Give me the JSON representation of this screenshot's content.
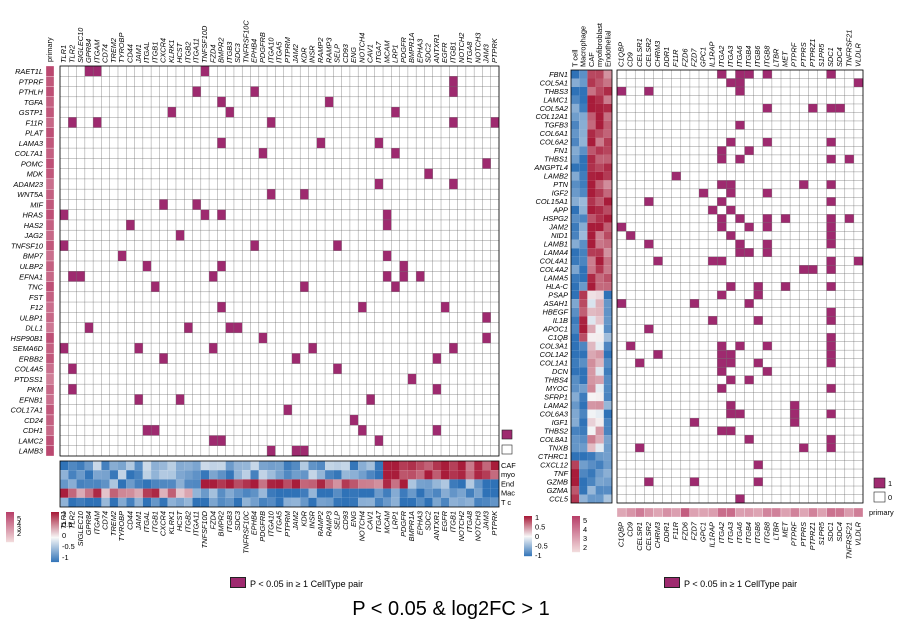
{
  "caption": "P < 0.05 & log2FC > 1",
  "colors": {
    "sig": "#9e2a6f",
    "primary_hi": "#b8406a",
    "primary_lo": "#f3dede",
    "div_lo": "#2f72b7",
    "div_mid": "#f7f7f7",
    "div_hi": "#a81c3a"
  },
  "chart_data": [
    {
      "type": "heatmap",
      "panel": "left-binary",
      "rows": [
        "RAET1L",
        "PTPRF",
        "PTHLH",
        "TGFA",
        "GSTP1",
        "F11R",
        "PLAT",
        "LAMA3",
        "COL7A1",
        "POMC",
        "MDK",
        "ADAM23",
        "WNT5A",
        "MIF",
        "HRAS",
        "HAS2",
        "JAG2",
        "TNFSF10",
        "BMP7",
        "ULBP2",
        "EFNA1",
        "TNC",
        "FST",
        "F12",
        "ULBP1",
        "DLL1",
        "HSP90B1",
        "SEMA6D",
        "ERBB2",
        "COL4A5",
        "PTDSS1",
        "PKM",
        "EFNB1",
        "COL17A1",
        "CD24",
        "CDH1",
        "LAMC2",
        "LAMB3"
      ],
      "columns": [
        "TLR1",
        "TLR2",
        "SIGLEC10",
        "GPR84",
        "ITGAM",
        "CD74",
        "TREM2",
        "TYROBP",
        "CD44",
        "JAM1",
        "ITGAL",
        "ITGB1",
        "CXCR4",
        "KLRK1",
        "HCST",
        "ITGB2",
        "ITGA11",
        "TNFSF10D",
        "FZD4",
        "BMPR2",
        "ITGB3",
        "SDC3",
        "TNFRSF10C",
        "EPHB4",
        "PDGFRB",
        "ITGA10",
        "ITGA5",
        "PTPRM",
        "JAM2",
        "KDR",
        "INSR",
        "RAMP2",
        "RAMP3",
        "SELP",
        "CD93",
        "ENG",
        "NOTCH4",
        "CAV1",
        "ITGA7",
        "MCAM",
        "LRP1",
        "PDGFR",
        "BMPR1A",
        "EPHA3",
        "SDC2",
        "ANTXR1",
        "EGFR",
        "ITGB1",
        "NOTCH2",
        "ITGA8",
        "NOTCH3",
        "JAM3",
        "PTPRK"
      ],
      "primary_annotation_label": "primary",
      "primary_values": [
        0.95,
        0.85,
        0.9,
        0.8,
        0.85,
        0.75,
        0.9,
        0.85,
        0.8,
        0.9,
        0.85,
        0.7,
        0.8,
        0.85,
        0.9,
        0.8,
        0.75,
        0.85,
        0.7,
        0.8,
        0.75,
        0.9,
        0.8,
        0.7,
        0.75,
        0.65,
        0.9,
        0.8,
        0.85,
        0.7,
        0.6,
        0.75,
        0.7,
        0.85,
        0.8,
        0.75,
        0.9,
        0.95
      ],
      "cell_types_label": [
        "CAF",
        "myo",
        "End",
        "Mac",
        "T c"
      ],
      "legend_values": [
        "1",
        "0"
      ],
      "legend_note": "P < 0.05 in ≥ 1 CellType pair",
      "colorbar_ticks": [
        "1",
        "0.5",
        "0",
        "-0.5",
        "-1"
      ]
    },
    {
      "type": "heatmap",
      "panel": "right-binary",
      "rows": [
        "FBN1",
        "COL5A1",
        "THBS3",
        "LAMC1",
        "COL5A2",
        "COL12A1",
        "TGFB3",
        "COL6A1",
        "COL6A2",
        "FN1",
        "THBS1",
        "ANGPTL4",
        "LAMB2",
        "PTN",
        "IGF2",
        "COL15A1",
        "APP",
        "HSPG2",
        "JAM2",
        "NID1",
        "LAMB1",
        "LAMA4",
        "COL4A1",
        "COL4A2",
        "LAMA5",
        "HLA-C",
        "PSAP",
        "ASAH1",
        "HBEGF",
        "IL1B",
        "APOC1",
        "C1QB",
        "COL3A1",
        "COL1A2",
        "COL1A1",
        "DCN",
        "THBS4",
        "MYOC",
        "SFRP1",
        "LAMA2",
        "COL6A3",
        "IGF1",
        "THBS2",
        "COL8A1",
        "TNXB",
        "CTHRC1",
        "CXCL12",
        "TNF",
        "GZMB",
        "GZMA",
        "CCL5"
      ],
      "columns": [
        "C1QBP",
        "CD9",
        "CELSR1",
        "CELSR2",
        "CHRM3",
        "DDR1",
        "F11R",
        "FZD6",
        "FZD7",
        "GPC1",
        "IL1RAP",
        "ITGA2",
        "ITGA3",
        "ITGA6",
        "ITGB4",
        "ITGB6",
        "ITGB8",
        "LTBR",
        "MET",
        "PTPRF",
        "PTPRS",
        "PTPRZ1",
        "S1PR5",
        "SDC1",
        "SDC4",
        "TNFRSF21",
        "VLDLR"
      ],
      "cell_type_columns": [
        "T cell",
        "Macrophage",
        "CAF",
        "myofibroblast",
        "Endothelial"
      ],
      "primary_annotation_label": "primary",
      "legend_values": [
        "1",
        "0"
      ],
      "legend_note": "P < 0.05 in ≥ 1 CellType pair",
      "colorbar_ticks": [
        "1",
        "0.5",
        "0",
        "-0.5",
        "-1"
      ],
      "primary_ticks": [
        "5",
        "4",
        "3",
        "2"
      ]
    }
  ]
}
